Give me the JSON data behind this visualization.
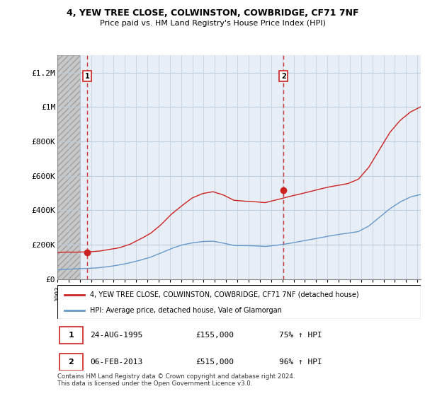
{
  "title_line1": "4, YEW TREE CLOSE, COLWINSTON, COWBRIDGE, CF71 7NF",
  "title_line2": "Price paid vs. HM Land Registry's House Price Index (HPI)",
  "ylabel_ticks": [
    "£0",
    "£200K",
    "£400K",
    "£600K",
    "£800K",
    "£1M",
    "£1.2M"
  ],
  "ytick_values": [
    0,
    200000,
    400000,
    600000,
    800000,
    1000000,
    1200000
  ],
  "ylim": [
    0,
    1300000
  ],
  "xlim_start": 1993.0,
  "xlim_end": 2025.3,
  "hpi_color": "#6699cc",
  "price_color": "#cc2222",
  "bg_hatch_left_end": 1995.0,
  "chart_bg_color": "#e8eef5",
  "hatch_bg_color": "#d8d8d8",
  "marker1_x": 1995.65,
  "marker1_y": 155000,
  "marker1_label": "1",
  "marker2_x": 2013.1,
  "marker2_y": 515000,
  "marker2_label": "2",
  "legend_line1": "4, YEW TREE CLOSE, COLWINSTON, COWBRIDGE, CF71 7NF (detached house)",
  "legend_line2": "HPI: Average price, detached house, Vale of Glamorgan",
  "annotation1_date": "24-AUG-1995",
  "annotation1_price": "£155,000",
  "annotation1_hpi": "75% ↑ HPI",
  "annotation2_date": "06-FEB-2013",
  "annotation2_price": "£515,000",
  "annotation2_hpi": "96% ↑ HPI",
  "footer": "Contains HM Land Registry data © Crown copyright and database right 2024.\nThis data is licensed under the Open Government Licence v3.0.",
  "grid_color": "#bbccdd",
  "prop_base": [
    155000,
    157000,
    158000,
    160000,
    165000,
    175000,
    185000,
    205000,
    235000,
    270000,
    320000,
    380000,
    430000,
    475000,
    500000,
    510000,
    490000,
    460000,
    455000,
    450000,
    445000,
    460000,
    475000,
    490000,
    505000,
    520000,
    535000,
    545000,
    555000,
    580000,
    650000,
    750000,
    850000,
    920000,
    970000,
    1000000
  ],
  "hpi_base": [
    55000,
    58000,
    60000,
    63000,
    67000,
    73000,
    82000,
    95000,
    110000,
    128000,
    152000,
    178000,
    198000,
    210000,
    218000,
    220000,
    208000,
    195000,
    195000,
    193000,
    190000,
    196000,
    205000,
    215000,
    226000,
    238000,
    250000,
    260000,
    268000,
    278000,
    310000,
    360000,
    410000,
    450000,
    480000,
    495000
  ],
  "prop_noise_seed": 42,
  "hpi_noise_seed": 123,
  "prop_noise_scale": 4000,
  "hpi_noise_scale": 2500,
  "n_points": 400
}
